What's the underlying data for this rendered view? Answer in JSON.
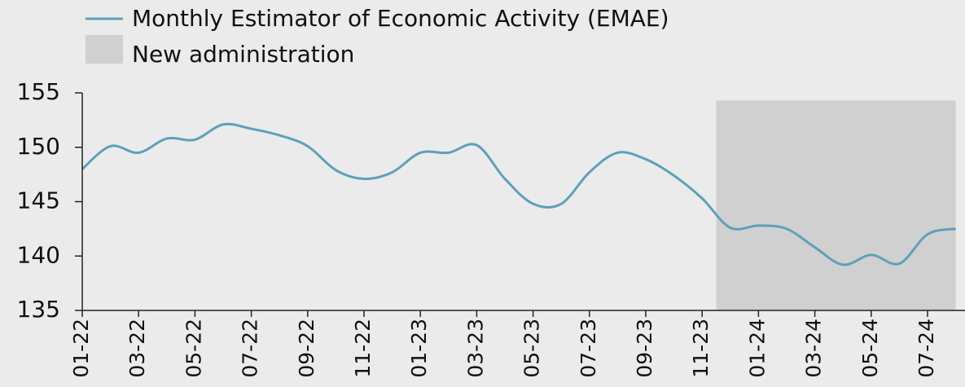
{
  "chart_data": {
    "type": "line",
    "categories": [
      "01-22",
      null,
      "03-22",
      null,
      "05-22",
      null,
      "07-22",
      null,
      "09-22",
      null,
      "11-22",
      null,
      "01-23",
      null,
      "03-23",
      null,
      "05-23",
      null,
      "07-23",
      null,
      "09-23",
      null,
      "11-23",
      null,
      "01-24",
      null,
      "03-24",
      null,
      "05-24",
      null,
      "07-24",
      null
    ],
    "series": [
      {
        "name": "Monthly Estimator of Economic Activity (EMAE)",
        "color": "#5fa0b8",
        "values": [
          148.0,
          150.1,
          149.5,
          150.8,
          150.7,
          152.1,
          151.7,
          151.1,
          150.1,
          147.9,
          147.1,
          147.7,
          149.5,
          149.5,
          150.2,
          147.1,
          144.8,
          144.8,
          147.7,
          149.5,
          148.9,
          147.4,
          145.3,
          142.6,
          142.8,
          142.5,
          140.8,
          139.2,
          140.1,
          139.3,
          142.0,
          142.5
        ]
      },
      {
        "name": "New administration",
        "type": "area",
        "color": "#d0d0d0",
        "values": [
          null,
          null,
          null,
          null,
          null,
          null,
          null,
          null,
          null,
          null,
          null,
          null,
          null,
          null,
          null,
          null,
          null,
          null,
          null,
          null,
          null,
          null,
          null,
          154.3,
          154.3,
          154.3,
          154.3,
          154.3,
          154.3,
          154.3,
          154.3,
          154.3
        ]
      }
    ],
    "ylim": [
      135,
      155
    ],
    "yticks": [
      135,
      140,
      145,
      150,
      155
    ]
  }
}
